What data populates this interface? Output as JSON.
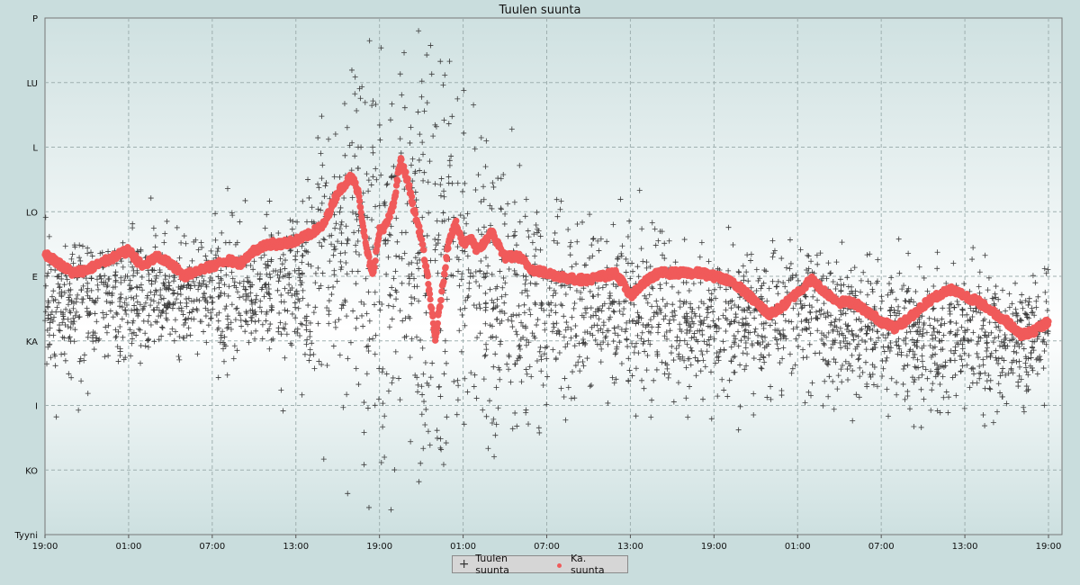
{
  "chart_data": {
    "type": "scatter",
    "title": "Tuulen suunta",
    "y_ticks": [
      "Tyyni",
      "KO",
      "I",
      "KA",
      "E",
      "LO",
      "L",
      "LU",
      "P"
    ],
    "y_range": [
      0,
      8
    ],
    "x_ticks": [
      "19:00",
      "01:00",
      "07:00",
      "13:00",
      "19:00",
      "01:00",
      "07:00",
      "13:00",
      "19:00",
      "01:00",
      "07:00",
      "13:00",
      "19:00"
    ],
    "x_range_hours": [
      0,
      72
    ],
    "grid": true,
    "legend": "bottom-center",
    "series": [
      {
        "name": "Tuulen suunta",
        "marker": "plus",
        "color": "#3a3a3a",
        "note_spread": [
          [
            0,
            3.55,
            0.5
          ],
          [
            6,
            3.65,
            0.5
          ],
          [
            12,
            3.75,
            0.5
          ],
          [
            18,
            3.75,
            0.55
          ],
          [
            22,
            4.3,
            1.6
          ],
          [
            27,
            4.2,
            1.6
          ],
          [
            32,
            3.7,
            1.2
          ],
          [
            36,
            3.5,
            0.7
          ],
          [
            42,
            3.4,
            0.55
          ],
          [
            48,
            3.3,
            0.5
          ],
          [
            54,
            3.4,
            0.55
          ],
          [
            60,
            3.1,
            0.55
          ],
          [
            66,
            3.0,
            0.5
          ],
          [
            72,
            3.05,
            0.5
          ]
        ]
      },
      {
        "name": "Ka. suunta",
        "marker": "dot",
        "color": "#f05a5a",
        "x": [
          0,
          1,
          2,
          3,
          4,
          5,
          6,
          7,
          8,
          9,
          10,
          11,
          12,
          13,
          14,
          15,
          16,
          17,
          18,
          19,
          20,
          21,
          22,
          22.5,
          23,
          23.5,
          24,
          24.5,
          25,
          25.5,
          26,
          26.5,
          27,
          27.5,
          28,
          28.5,
          29,
          29.5,
          30,
          30.5,
          31,
          31.5,
          32,
          33,
          34,
          35,
          36,
          37,
          38,
          39,
          40,
          41,
          42,
          43,
          44,
          45,
          46,
          47,
          48,
          49,
          50,
          51,
          52,
          53,
          54,
          55,
          56,
          57,
          58,
          59,
          60,
          61,
          62,
          63,
          64,
          65,
          66,
          67,
          68,
          69,
          70,
          71,
          72
        ],
        "y": [
          4.35,
          4.2,
          4.05,
          4.1,
          4.2,
          4.3,
          4.4,
          4.15,
          4.3,
          4.2,
          4.0,
          4.1,
          4.15,
          4.25,
          4.2,
          4.4,
          4.5,
          4.5,
          4.55,
          4.65,
          4.8,
          5.3,
          5.55,
          5.3,
          4.5,
          4.0,
          4.7,
          4.8,
          5.1,
          5.8,
          5.5,
          5.0,
          4.6,
          3.9,
          3.0,
          3.8,
          4.6,
          4.8,
          4.5,
          4.6,
          4.4,
          4.5,
          4.7,
          4.3,
          4.3,
          4.1,
          4.05,
          4.0,
          3.95,
          3.95,
          4.0,
          4.05,
          3.7,
          3.9,
          4.05,
          4.05,
          4.05,
          4.05,
          4.0,
          3.95,
          3.8,
          3.6,
          3.4,
          3.55,
          3.75,
          3.95,
          3.75,
          3.6,
          3.6,
          3.45,
          3.3,
          3.2,
          3.35,
          3.55,
          3.7,
          3.8,
          3.7,
          3.6,
          3.45,
          3.3,
          3.1,
          3.15,
          3.3
        ]
      }
    ]
  }
}
